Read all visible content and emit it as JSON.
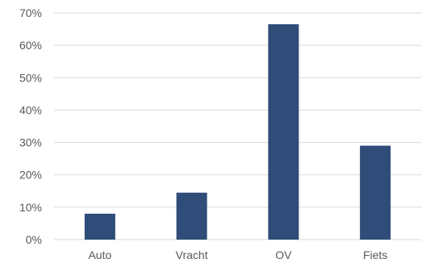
{
  "chart_data": {
    "type": "bar",
    "categories": [
      "Auto",
      "Vracht",
      "OV",
      "Fiets"
    ],
    "values": [
      8,
      14.5,
      66.5,
      29
    ],
    "ylim": [
      0,
      70
    ],
    "yticks": [
      "0%",
      "10%",
      "20%",
      "30%",
      "40%",
      "50%",
      "60%",
      "70%"
    ],
    "grid": true,
    "legend": "none",
    "bar_color": "#2f4d78"
  }
}
